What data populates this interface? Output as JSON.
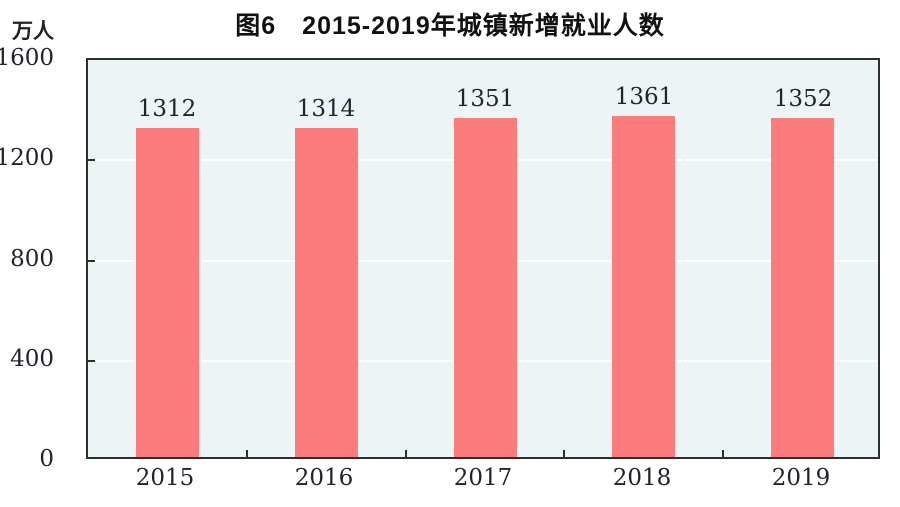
{
  "header": {
    "title": "图6　2015-2019年城镇新增就业人数",
    "unit_label": "万人"
  },
  "chart_data": {
    "type": "bar",
    "title": "图6　2015-2019年城镇新增就业人数",
    "categories": [
      "2015",
      "2016",
      "2017",
      "2018",
      "2019"
    ],
    "values": [
      1312,
      1314,
      1351,
      1361,
      1352
    ],
    "xlabel": "",
    "ylabel": "万人",
    "ylim": [
      0,
      1600
    ],
    "yticks": [
      0,
      400,
      800,
      1200,
      1600
    ],
    "grid": "horizontal",
    "gridline_values": [
      400,
      800,
      1200
    ],
    "legend": "none",
    "colors": {
      "bar": "#fb7c7c",
      "plot_background": "#edf4f6",
      "gridline": "#ffffff",
      "axis": "#2e2e2e",
      "tick_text": "#23232e",
      "title_text": "#111111"
    }
  }
}
